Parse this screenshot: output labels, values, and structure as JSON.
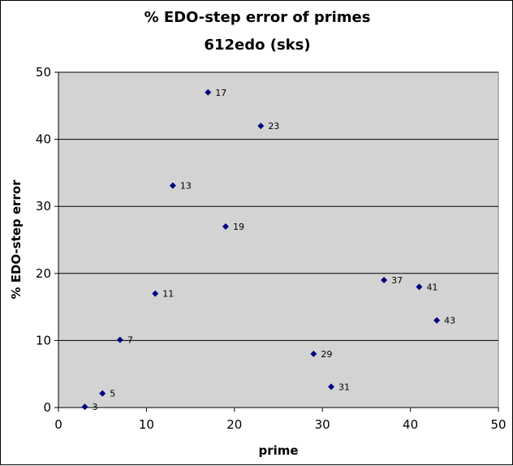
{
  "chart_data": {
    "type": "scatter",
    "title": "% EDO-step error of primes",
    "subtitle": "612edo (sks)",
    "xlabel": "prime",
    "ylabel": "% EDO-step error",
    "xlim": [
      0,
      50
    ],
    "ylim": [
      0,
      50
    ],
    "xticks": [
      0,
      10,
      20,
      30,
      40,
      50
    ],
    "yticks": [
      0,
      10,
      20,
      30,
      40,
      50
    ],
    "grid": "horizontal",
    "legend": "none",
    "colors": {
      "plot_bg": "#d3d3d3",
      "marker": "#000080",
      "grid": "#000000"
    },
    "points": [
      {
        "x": 3,
        "y": 0.1,
        "label": "3"
      },
      {
        "x": 5,
        "y": 2.1,
        "label": "5"
      },
      {
        "x": 7,
        "y": 10.1,
        "label": "7"
      },
      {
        "x": 11,
        "y": 17,
        "label": "11"
      },
      {
        "x": 13,
        "y": 33.1,
        "label": "13"
      },
      {
        "x": 17,
        "y": 47,
        "label": "17"
      },
      {
        "x": 19,
        "y": 27,
        "label": "19"
      },
      {
        "x": 23,
        "y": 42,
        "label": "23"
      },
      {
        "x": 29,
        "y": 8,
        "label": "29"
      },
      {
        "x": 31,
        "y": 3.1,
        "label": "31"
      },
      {
        "x": 37,
        "y": 19,
        "label": "37"
      },
      {
        "x": 41,
        "y": 18,
        "label": "41"
      },
      {
        "x": 43,
        "y": 13,
        "label": "43"
      }
    ]
  }
}
